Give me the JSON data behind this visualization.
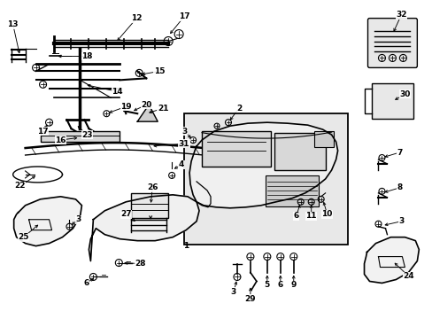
{
  "bg_color": "#ffffff",
  "fig_width": 4.89,
  "fig_height": 3.6,
  "dpi": 100,
  "line_color": "#000000",
  "gray_fill": "#d8d8d8",
  "light_gray": "#eeeeee",
  "box_bg": "#e0e0e0"
}
